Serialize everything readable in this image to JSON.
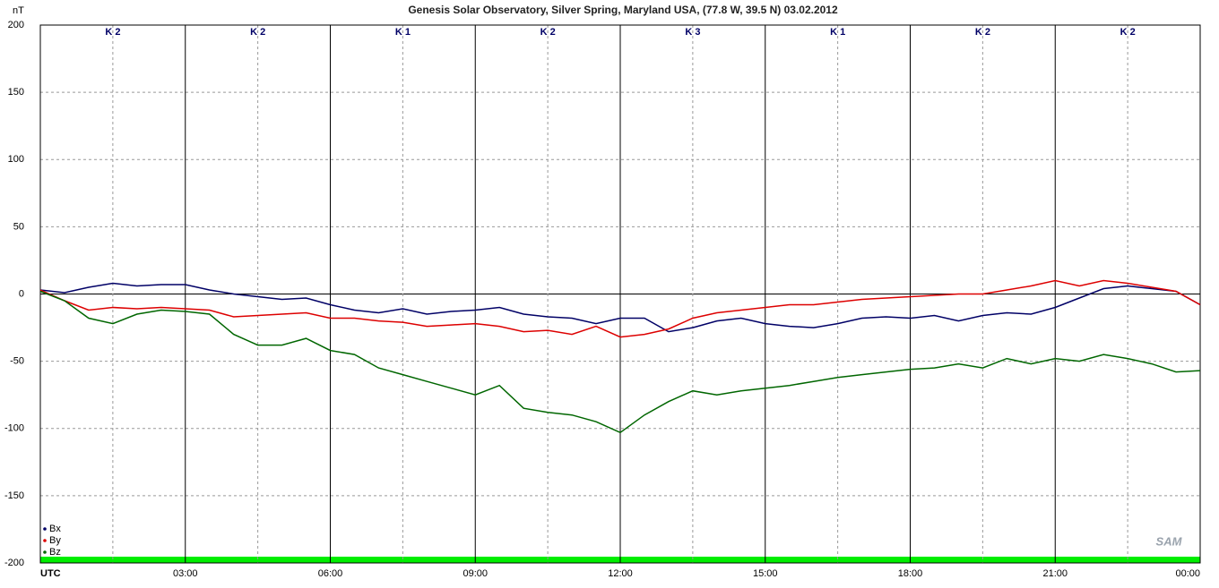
{
  "chart_data": {
    "type": "line",
    "title": "Genesis Solar Observatory, Silver Spring, Maryland USA, (77.8 W, 39.5 N)  03.02.2012",
    "y_label": "nT",
    "logo": "SAM",
    "x": [
      0,
      0.5,
      1,
      1.5,
      2,
      2.5,
      3,
      3.5,
      4,
      4.5,
      5,
      5.5,
      6,
      6.5,
      7,
      7.5,
      8,
      8.5,
      9,
      9.5,
      10,
      10.5,
      11,
      11.5,
      12,
      12.5,
      13,
      13.5,
      14,
      14.5,
      15,
      15.5,
      16,
      16.5,
      17,
      17.5,
      18,
      18.5,
      19,
      19.5,
      20,
      20.5,
      21,
      21.5,
      22,
      22.5,
      23,
      23.5,
      24
    ],
    "series": [
      {
        "name": "Bx",
        "color": "#000066",
        "values": [
          3,
          1,
          5,
          8,
          6,
          7,
          7,
          3,
          0,
          -2,
          -4,
          -3,
          -8,
          -12,
          -14,
          -11,
          -15,
          -13,
          -12,
          -10,
          -15,
          -17,
          -18,
          -22,
          -18,
          -18,
          -28,
          -25,
          -20,
          -18,
          -22,
          -24,
          -25,
          -22,
          -18,
          -17,
          -18,
          -16,
          -20,
          -16,
          -14,
          -15,
          -10,
          -3,
          4,
          6,
          4,
          2,
          -8
        ]
      },
      {
        "name": "By",
        "color": "#dd0000",
        "values": [
          3,
          -5,
          -12,
          -10,
          -11,
          -10,
          -11,
          -12,
          -17,
          -16,
          -15,
          -14,
          -18,
          -18,
          -20,
          -21,
          -24,
          -23,
          -22,
          -24,
          -28,
          -27,
          -30,
          -24,
          -32,
          -30,
          -26,
          -18,
          -14,
          -12,
          -10,
          -8,
          -8,
          -6,
          -4,
          -3,
          -2,
          -1,
          0,
          0,
          3,
          6,
          10,
          6,
          10,
          8,
          5,
          2,
          -8
        ]
      },
      {
        "name": "Bz",
        "color": "#006600",
        "values": [
          2,
          -5,
          -18,
          -22,
          -15,
          -12,
          -13,
          -15,
          -30,
          -38,
          -38,
          -33,
          -42,
          -45,
          -55,
          -60,
          -65,
          -70,
          -75,
          -68,
          -85,
          -88,
          -90,
          -95,
          -103,
          -90,
          -80,
          -72,
          -75,
          -72,
          -70,
          -68,
          -65,
          -62,
          -60,
          -58,
          -56,
          -55,
          -52,
          -55,
          -48,
          -52,
          -48,
          -50,
          -45,
          -48,
          -52,
          -58,
          -57
        ]
      }
    ],
    "k_indices": {
      "values": [
        2,
        2,
        1,
        2,
        3,
        1,
        2,
        2
      ],
      "value_labels": [
        "K 2",
        "K 2",
        "K 1",
        "K 2",
        "K 3",
        "K 1",
        "K 2",
        "K 2"
      ]
    },
    "xlim": [
      0,
      24
    ],
    "xticks": [
      {
        "value": 0,
        "label": "UTC"
      },
      {
        "value": 3,
        "label": "03:00"
      },
      {
        "value": 6,
        "label": "06:00"
      },
      {
        "value": 9,
        "label": "09:00"
      },
      {
        "value": 12,
        "label": "12:00"
      },
      {
        "value": 15,
        "label": "15:00"
      },
      {
        "value": 18,
        "label": "18:00"
      },
      {
        "value": 21,
        "label": "21:00"
      },
      {
        "value": 24,
        "label": "00:00"
      }
    ],
    "x_minor_ticks": [
      1.5,
      4.5,
      7.5,
      10.5,
      13.5,
      16.5,
      19.5,
      22.5
    ],
    "ylim": [
      -200,
      200
    ],
    "yticks": [
      200,
      150,
      100,
      50,
      0,
      -50,
      -100,
      -150,
      -200
    ],
    "grid": true,
    "legend": "bottom-left"
  }
}
